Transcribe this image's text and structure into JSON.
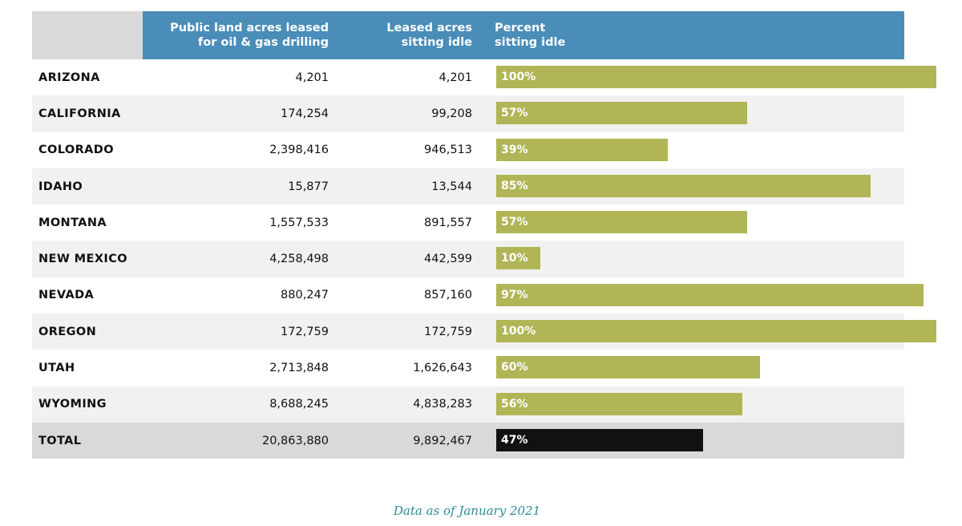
{
  "chart_data": {
    "type": "table",
    "columns": [
      "",
      "Public land acres leased\nfor oil & gas drilling",
      "Leased acres\nsitting idle",
      "Percent\nsitting idle"
    ],
    "rows": [
      {
        "state": "ARIZONA",
        "leased": "4,201",
        "idle": "4,201",
        "percent_label": "100%",
        "percent": 100
      },
      {
        "state": "CALIFORNIA",
        "leased": "174,254",
        "idle": "99,208",
        "percent_label": "57%",
        "percent": 57
      },
      {
        "state": "COLORADO",
        "leased": "2,398,416",
        "idle": "946,513",
        "percent_label": "39%",
        "percent": 39
      },
      {
        "state": "IDAHO",
        "leased": "15,877",
        "idle": "13,544",
        "percent_label": "85%",
        "percent": 85
      },
      {
        "state": "MONTANA",
        "leased": "1,557,533",
        "idle": "891,557",
        "percent_label": "57%",
        "percent": 57
      },
      {
        "state": "NEW MEXICO",
        "leased": "4,258,498",
        "idle": "442,599",
        "percent_label": "10%",
        "percent": 10
      },
      {
        "state": "NEVADA",
        "leased": "880,247",
        "idle": "857,160",
        "percent_label": "97%",
        "percent": 97
      },
      {
        "state": "OREGON",
        "leased": "172,759",
        "idle": "172,759",
        "percent_label": "100%",
        "percent": 100
      },
      {
        "state": "UTAH",
        "leased": "2,713,848",
        "idle": "1,626,643",
        "percent_label": "60%",
        "percent": 60
      },
      {
        "state": "WYOMING",
        "leased": "8,688,245",
        "idle": "4,838,283",
        "percent_label": "56%",
        "percent": 56
      }
    ],
    "total": {
      "state": "TOTAL",
      "leased": "20,863,880",
      "idle": "9,892,467",
      "percent_label": "47%",
      "percent": 47
    },
    "xlim": [
      0,
      100
    ]
  },
  "footnote": "Data as of January 2021",
  "colors": {
    "header": "#4a8db9",
    "bar": "#b0b556",
    "total_bar": "#111111",
    "footnote": "#2d8a9a"
  }
}
